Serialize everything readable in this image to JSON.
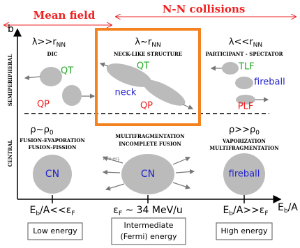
{
  "header": {
    "left": "Mean field",
    "right": "N-N collisions"
  },
  "axes": {
    "y": "b",
    "x": {
      "main": "E",
      "sub": "b",
      "tail": "/A"
    },
    "rows": [
      "SEMIPERIPHERAL",
      "CENTRAL"
    ]
  },
  "columns": [
    {
      "lambda": {
        "main": "λ>>r",
        "sub": "NN"
      },
      "title": "DIC",
      "blobs": [
        "QT",
        "QP"
      ],
      "rho": {
        "main": "ρ~ρ",
        "sub": "0"
      },
      "central_title": [
        "FUSION-EVAPORATION",
        "FUSION-FISSION"
      ],
      "central_blob": "CN",
      "tick": {
        "main": "E",
        "sub": "b",
        "mid": "/A<<ε",
        "sub2": "F"
      },
      "energy": "Low energy"
    },
    {
      "lambda": {
        "main": "λ~r",
        "sub": "NN"
      },
      "title": "NECK-LIKE STRUCTURE",
      "blobs": [
        "QT",
        "neck",
        "QP"
      ],
      "central_title": [
        "MULTIFRAGMENTATION",
        "INCOMPLETE FUSION"
      ],
      "pre": "Pre-eq.",
      "central_blob": "CN",
      "tick": {
        "main": "ε",
        "sub": "F",
        "tail": " ~ 34 MeV/u"
      },
      "energy": [
        "Intermediate",
        "(Fermi) energy"
      ]
    },
    {
      "lambda": {
        "main": "λ<<r",
        "sub": "NN"
      },
      "title": "PARTICIPANT - SPECTATOR",
      "blobs": [
        "TLF",
        "fireball",
        "PLF"
      ],
      "rho": {
        "main": "ρ>>ρ",
        "sub": "0"
      },
      "central_title": [
        "VAPORIZATION",
        "MULTIFRAGMENTATION"
      ],
      "central_blob": "fireball",
      "tick": {
        "main": "E",
        "sub": "b",
        "mid": "/A>>ε",
        "sub2": "F"
      },
      "energy": "High energy"
    }
  ]
}
